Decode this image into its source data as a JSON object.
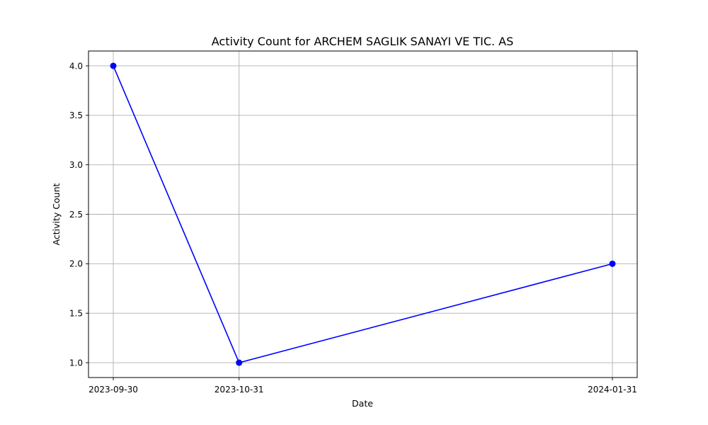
{
  "chart_data": {
    "type": "line",
    "title": "Activity Count for ARCHEM SAGLIK SANAYI VE TIC. AS",
    "xlabel": "Date",
    "ylabel": "Activity Count",
    "x": [
      "2023-09-30",
      "2023-10-31",
      "2024-01-31"
    ],
    "x_tick_labels": [
      "2023-09-30",
      "2023-10-31",
      "2024-01-31"
    ],
    "series": [
      {
        "values": [
          4.0,
          1.0,
          2.0
        ],
        "color": "#0000ff",
        "marker": "circle"
      }
    ],
    "y_ticks": [
      1.0,
      1.5,
      2.0,
      2.5,
      3.0,
      3.5,
      4.0
    ],
    "y_tick_labels": [
      "1.0",
      "1.5",
      "2.0",
      "2.5",
      "3.0",
      "3.5",
      "4.0"
    ],
    "ylim": [
      0.85,
      4.15
    ],
    "grid": true,
    "legend": "none"
  }
}
